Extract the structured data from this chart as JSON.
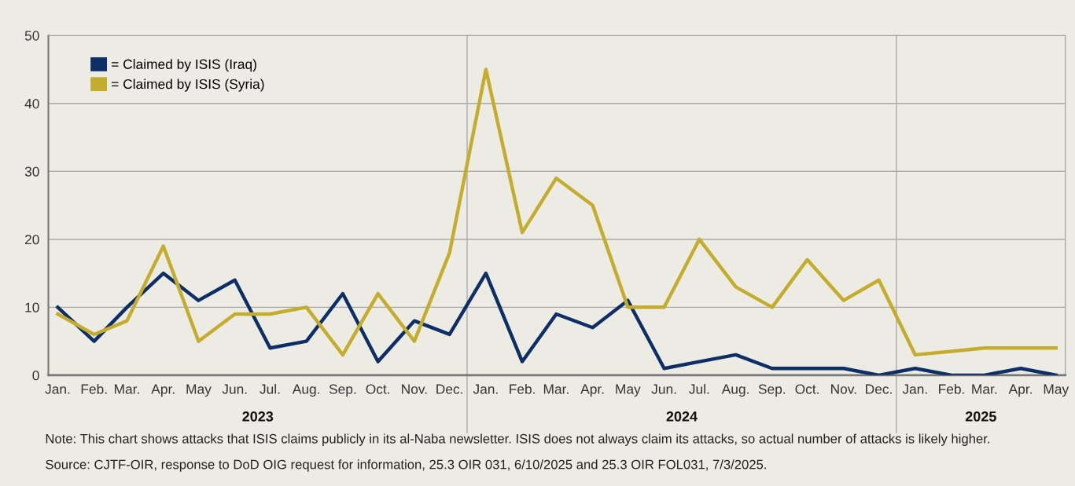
{
  "chart_data": {
    "type": "line",
    "x": [
      "2023-01",
      "2023-02",
      "2023-03",
      "2023-04",
      "2023-05",
      "2023-06",
      "2023-07",
      "2023-08",
      "2023-09",
      "2023-10",
      "2023-11",
      "2023-12",
      "2024-01",
      "2024-02",
      "2024-03",
      "2024-04",
      "2024-05",
      "2024-06",
      "2024-07",
      "2024-08",
      "2024-09",
      "2024-10",
      "2024-11",
      "2024-12",
      "2025-01",
      "2025-02",
      "2025-03",
      "2025-04",
      "2025-05"
    ],
    "series": [
      {
        "name": "= Claimed by ISIS (Iraq)",
        "color": "#0d2f66",
        "values": [
          10,
          5,
          10,
          15,
          11,
          14,
          4,
          5,
          12,
          2,
          8,
          6,
          15,
          2,
          9,
          7,
          11,
          1,
          2,
          3,
          1,
          1,
          1,
          0,
          1,
          0,
          0,
          1,
          0
        ]
      },
      {
        "name": "= Claimed by ISIS (Syria)",
        "color": "#c4ad2d",
        "values": [
          9,
          6,
          8,
          19,
          5,
          9,
          9,
          10,
          3,
          12,
          5,
          18,
          45,
          21,
          29,
          25,
          10,
          10,
          20,
          13,
          10,
          17,
          11,
          14,
          3,
          3.5,
          4,
          4,
          4
        ]
      }
    ],
    "xlim": [
      "2022-12-24",
      "2025-05-09"
    ],
    "xticks": [
      {
        "value": "2023-01",
        "label": "Jan."
      },
      {
        "value": "2023-02",
        "label": "Feb."
      },
      {
        "value": "2023-03",
        "label": "Mar."
      },
      {
        "value": "2023-04",
        "label": "Apr."
      },
      {
        "value": "2023-05",
        "label": "May"
      },
      {
        "value": "2023-06",
        "label": "Jun."
      },
      {
        "value": "2023-07",
        "label": "Jul."
      },
      {
        "value": "2023-08",
        "label": "Aug."
      },
      {
        "value": "2023-09",
        "label": "Sep."
      },
      {
        "value": "2023-10",
        "label": "Oct."
      },
      {
        "value": "2023-11",
        "label": "Nov."
      },
      {
        "value": "2023-12",
        "label": "Dec."
      },
      {
        "value": "2024-01",
        "label": "Jan."
      },
      {
        "value": "2024-02",
        "label": "Feb."
      },
      {
        "value": "2024-03",
        "label": "Mar."
      },
      {
        "value": "2024-04",
        "label": "Apr."
      },
      {
        "value": "2024-05",
        "label": "May"
      },
      {
        "value": "2024-06",
        "label": "Jun."
      },
      {
        "value": "2024-07",
        "label": "Jul."
      },
      {
        "value": "2024-08",
        "label": "Aug."
      },
      {
        "value": "2024-09",
        "label": "Sep."
      },
      {
        "value": "2024-10",
        "label": "Oct."
      },
      {
        "value": "2024-11",
        "label": "Nov."
      },
      {
        "value": "2024-12",
        "label": "Dec."
      },
      {
        "value": "2025-01",
        "label": "Jan."
      },
      {
        "value": "2025-02",
        "label": "Feb."
      },
      {
        "value": "2025-03",
        "label": "Mar."
      },
      {
        "value": "2025-04",
        "label": "Apr."
      },
      {
        "value": "2025-05",
        "label": "May"
      }
    ],
    "ylim": [
      0,
      50
    ],
    "yticks": [
      0,
      10,
      20,
      30,
      40,
      50
    ],
    "ref_lines": [
      {
        "axis": "x",
        "value": "2023-12-16",
        "color": "#aaaaaa"
      },
      {
        "axis": "x",
        "value": "2024-12-16",
        "color": "#aaaaaa"
      }
    ],
    "grid": "y",
    "legend": "top left",
    "marker": "none",
    "line_style": "solid",
    "annotations": [
      "2023",
      "2024",
      "2025",
      "Note: This chart shows attacks that ISIS claims publicly in its al-Naba newsletter. ISIS does not always claim its attacks, so actual number of attacks is likely higher.",
      "Source: CJTF-OIR, response to DoD OIG request for information, 25.3 OIR 031, 6/10/2025 and 25.3 OIR FOL031, 7/3/2025."
    ]
  }
}
